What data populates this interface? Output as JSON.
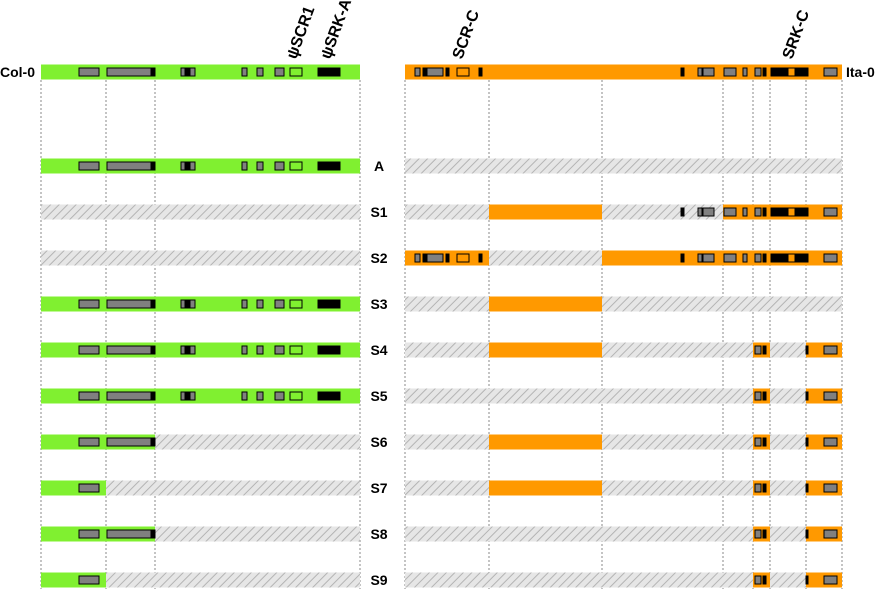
{
  "colors": {
    "col": "#80f030",
    "ita": "#ff9900",
    "hatch_bg": "#e6e6e6",
    "hatch_line": "#b4b4b4",
    "exon_fill": "#808080",
    "dark": "#000000"
  },
  "left_accession": "Col-0",
  "right_accession": "Ita-0",
  "genes": {
    "left": [
      "ψSCR1",
      "ψSRK-A"
    ],
    "right": [
      "SCR-C",
      "SRK-C"
    ]
  },
  "segments": {
    "left": [
      "L1",
      "L2",
      "L3"
    ],
    "right": [
      "R1",
      "R2",
      "R3",
      "R4",
      "R5",
      "R6",
      "R7"
    ]
  },
  "rows": [
    {
      "label": "Col-0",
      "left": [
        "L1",
        "L2",
        "L3"
      ],
      "right": []
    },
    {
      "label": "A",
      "left": [
        "L1",
        "L2",
        "L3"
      ],
      "right": []
    },
    {
      "label": "S1",
      "left": [],
      "right": [
        "R2",
        "R4",
        "R5",
        "R6",
        "R7"
      ]
    },
    {
      "label": "S2",
      "left": [],
      "right": [
        "R1",
        "R3",
        "R4",
        "R5",
        "R6",
        "R7"
      ]
    },
    {
      "label": "S3",
      "left": [
        "L1",
        "L2",
        "L3"
      ],
      "right": [
        "R2"
      ]
    },
    {
      "label": "S4",
      "left": [
        "L1",
        "L2",
        "L3"
      ],
      "right": [
        "R2",
        "R5",
        "R7"
      ]
    },
    {
      "label": "S5",
      "left": [
        "L1",
        "L2",
        "L3"
      ],
      "right": [
        "R5",
        "R7"
      ]
    },
    {
      "label": "S6",
      "left": [
        "L1",
        "L2"
      ],
      "right": [
        "R2",
        "R5",
        "R7"
      ]
    },
    {
      "label": "S7",
      "left": [
        "L1"
      ],
      "right": [
        "R2",
        "R5",
        "R7"
      ]
    },
    {
      "label": "S8",
      "left": [
        "L1",
        "L2"
      ],
      "right": [
        "R5",
        "R7"
      ]
    },
    {
      "label": "S9",
      "left": [
        "L1"
      ],
      "right": [
        "R5",
        "R7"
      ]
    }
  ]
}
